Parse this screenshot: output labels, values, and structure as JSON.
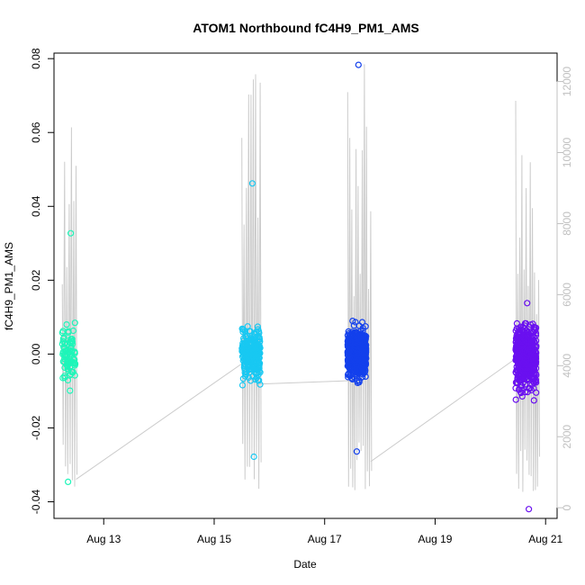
{
  "chart_data": {
    "type": "scatter",
    "title": "ATOM1 Northbound fC4H9_PM1_AMS",
    "xlabel": "Date",
    "ylabel": "fC4H9_PM1_AMS",
    "x_ticks": [
      {
        "date": "2016-08-13",
        "label": "Aug 13"
      },
      {
        "date": "2016-08-15",
        "label": "Aug 15"
      },
      {
        "date": "2016-08-17",
        "label": "Aug 17"
      },
      {
        "date": "2016-08-19",
        "label": "Aug 19"
      },
      {
        "date": "2016-08-21",
        "label": "Aug 21"
      }
    ],
    "xlim": [
      "2016-08-12 02:24",
      "2016-08-21 05:00"
    ],
    "ylim": [
      -0.0445,
      0.0815
    ],
    "y_ticks": [
      -0.04,
      -0.02,
      0.0,
      0.02,
      0.04,
      0.06,
      0.08
    ],
    "y_tick_labels": [
      "-0.04",
      "-0.02",
      "0.00",
      "0.02",
      "0.04",
      "0.06",
      "0.08"
    ],
    "y2_ticks": [
      0,
      2000,
      4000,
      6000,
      8000,
      10000,
      12000
    ],
    "y2_tick_labels": [
      "0",
      "2000",
      "4000",
      "6000",
      "8000",
      "10000",
      "12000"
    ],
    "y2lim": [
      -300,
      12800
    ],
    "grid": false,
    "legend": "none",
    "clusters": [
      {
        "start": "2016-08-12 06:00",
        "end": "2016-08-12 12:00",
        "color": "#1ff5b9",
        "y_center": -0.001,
        "y_spread": 0.007,
        "min": -0.0346,
        "max": 0.0327
      },
      {
        "start": "2016-08-15 12:00",
        "end": "2016-08-15 20:00",
        "color": "#18c8f2",
        "y_center": 0.0,
        "y_spread": 0.006,
        "min": -0.0278,
        "max": 0.0462
      },
      {
        "start": "2016-08-17 10:00",
        "end": "2016-08-17 18:00",
        "color": "#1340ec",
        "y_center": 0.0,
        "y_spread": 0.0055,
        "min": -0.0264,
        "max": 0.0783
      },
      {
        "start": "2016-08-20 11:00",
        "end": "2016-08-20 20:00",
        "color": "#6a10f0",
        "y_center": -0.0005,
        "y_spread": 0.0075,
        "min": -0.042,
        "max": 0.0138
      }
    ],
    "secondary_series": {
      "color": "#cccccc",
      "segments": [
        {
          "start": "2016-08-12 06:00",
          "end": "2016-08-12 12:00",
          "min": 300,
          "max": 11650
        },
        {
          "start": "2016-08-15 12:00",
          "end": "2016-08-15 20:00",
          "min": 100,
          "max": 12300
        },
        {
          "start": "2016-08-17 10:00",
          "end": "2016-08-17 20:00",
          "min": 100,
          "max": 12600
        },
        {
          "start": "2016-08-20 11:00",
          "end": "2016-08-20 21:00",
          "min": 100,
          "max": 11900
        }
      ],
      "connectors": [
        {
          "x1": "2016-08-12 12:00",
          "y1": 800,
          "x2": "2016-08-15 13:00",
          "y2": 4100
        },
        {
          "x1": "2016-08-15 18:00",
          "y1": 3480,
          "x2": "2016-08-17 12:00",
          "y2": 3580
        },
        {
          "x1": "2016-08-17 20:00",
          "y1": 1300,
          "x2": "2016-08-20 11:00",
          "y2": 4200
        }
      ]
    }
  }
}
